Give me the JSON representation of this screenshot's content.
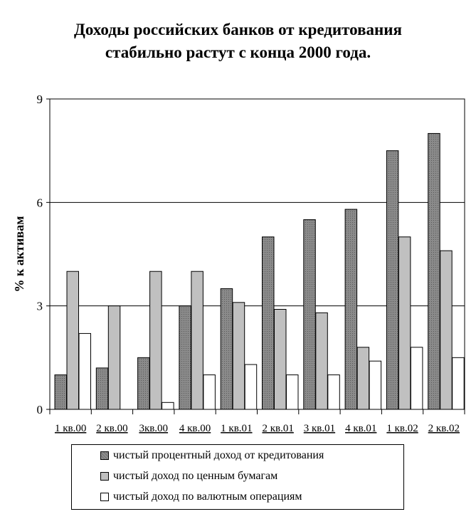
{
  "chart_data": {
    "type": "bar",
    "title_lines": [
      "Доходы российских банков от кредитования",
      "стабильно растут с конца 2000 года."
    ],
    "xlabel": "",
    "ylabel": "% к активам",
    "ylim": [
      0,
      9
    ],
    "yticks": [
      0,
      3,
      6,
      9
    ],
    "grid": true,
    "legend_position": "bottom",
    "categories": [
      "1 кв.00",
      "2 кв.00",
      "3кв.00",
      "4 кв.00",
      "1 кв.01",
      "2 кв.01",
      "3 кв.01",
      "4 кв.01",
      "1 кв.02",
      "2 кв.02"
    ],
    "series": [
      {
        "name": "чистый процентный доход от кредитования",
        "color": "#808080",
        "values": [
          1.0,
          1.2,
          1.5,
          3.0,
          3.5,
          5.0,
          5.5,
          5.8,
          7.5,
          8.0
        ]
      },
      {
        "name": "чистый доход по ценным бумагам",
        "color": "#c0c0c0",
        "values": [
          4.0,
          3.0,
          4.0,
          4.0,
          3.1,
          2.9,
          2.8,
          1.8,
          5.0,
          4.6
        ]
      },
      {
        "name": "чистый доход по валютным операциям",
        "color": "#ffffff",
        "values": [
          2.2,
          0.0,
          0.2,
          1.0,
          1.3,
          1.0,
          1.0,
          1.4,
          1.8,
          1.5
        ]
      }
    ]
  }
}
